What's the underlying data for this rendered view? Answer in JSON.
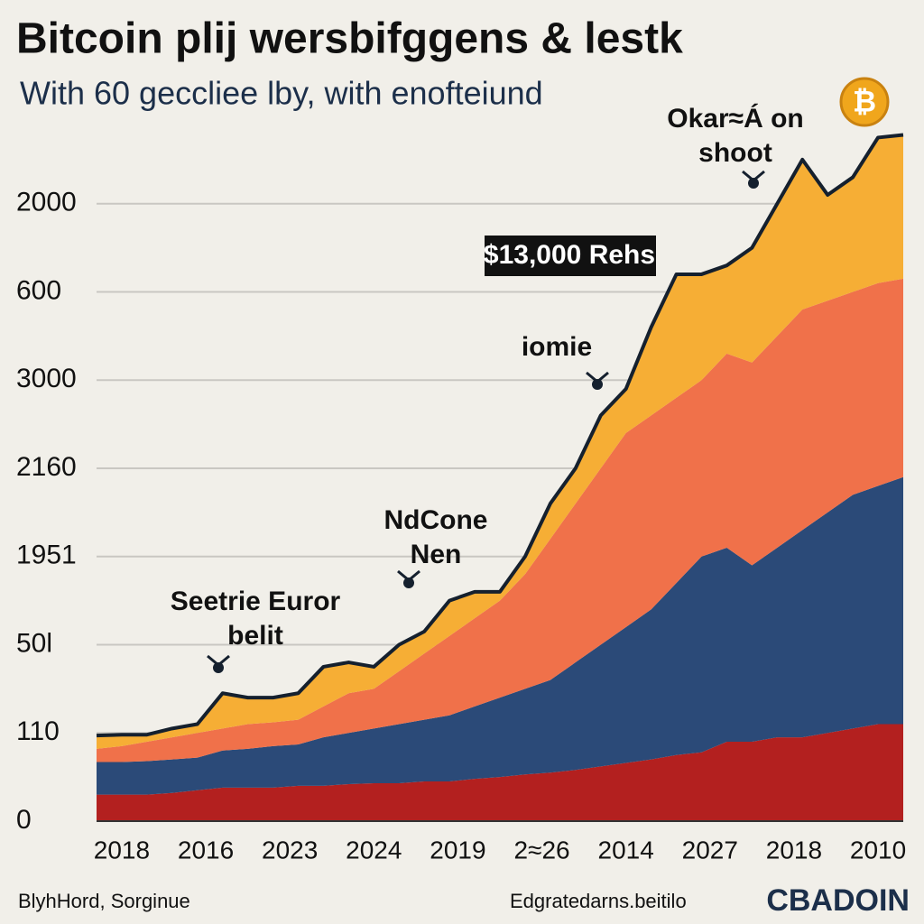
{
  "chart_data": {
    "type": "stacked_area",
    "title": "Bitcoin plij wersbifggens & lestk",
    "subtitle": "With 60 geccliee lby, with enofteiund",
    "logo_symbol": "₿",
    "x": [
      -0.3,
      0,
      0.3,
      0.6,
      0.9,
      1.2,
      1.5,
      1.8,
      2.1,
      2.4,
      2.7,
      3.0,
      3.3,
      3.6,
      3.9,
      4.2,
      4.5,
      4.8,
      5.1,
      5.4,
      5.7,
      6.0,
      6.3,
      6.6,
      6.9,
      7.2,
      7.5,
      7.8,
      8.1,
      8.4,
      8.7,
      9.0,
      9.3
    ],
    "xlim": [
      -0.3,
      9.3
    ],
    "xticks": [
      {
        "value": 0,
        "label": "2018"
      },
      {
        "value": 1,
        "label": "2016"
      },
      {
        "value": 2,
        "label": "2023"
      },
      {
        "value": 3,
        "label": "2024"
      },
      {
        "value": 4,
        "label": "2019"
      },
      {
        "value": 5,
        "label": "2≈26"
      },
      {
        "value": 6,
        "label": "2014"
      },
      {
        "value": 7,
        "label": "2027"
      },
      {
        "value": 8,
        "label": "2018"
      },
      {
        "value": 9,
        "label": "2010"
      }
    ],
    "ylim": [
      0,
      8
    ],
    "yticks": [
      0,
      {
        "value": 1,
        "label": "110"
      },
      {
        "value": 2,
        "label": "50l"
      },
      {
        "value": 3,
        "label": "1951"
      },
      {
        "value": 4,
        "label": "2160"
      },
      {
        "value": 5,
        "label": "3000"
      },
      {
        "value": 6,
        "label": "600"
      },
      {
        "value": 7,
        "label": "2000"
      }
    ],
    "grid": true,
    "series": [
      {
        "color": "#b3201f",
        "values": [
          0.3,
          0.3,
          0.3,
          0.32,
          0.35,
          0.38,
          0.38,
          0.38,
          0.4,
          0.4,
          0.42,
          0.43,
          0.43,
          0.45,
          0.45,
          0.48,
          0.5,
          0.53,
          0.55,
          0.58,
          0.62,
          0.66,
          0.7,
          0.75,
          0.78,
          0.9,
          0.9,
          0.95,
          0.95,
          1.0,
          1.05,
          1.1,
          1.1
        ]
      },
      {
        "color": "#2b4a78",
        "values": [
          0.37,
          0.37,
          0.38,
          0.38,
          0.37,
          0.42,
          0.44,
          0.47,
          0.47,
          0.55,
          0.58,
          0.62,
          0.67,
          0.7,
          0.75,
          0.82,
          0.9,
          0.97,
          1.05,
          1.22,
          1.38,
          1.54,
          1.7,
          1.95,
          2.22,
          2.2,
          2.0,
          2.15,
          2.35,
          2.5,
          2.65,
          2.7,
          2.8
        ]
      },
      {
        "color": "#f0714a",
        "values": [
          0.15,
          0.18,
          0.22,
          0.25,
          0.28,
          0.25,
          0.28,
          0.27,
          0.28,
          0.35,
          0.45,
          0.45,
          0.6,
          0.75,
          0.9,
          1.0,
          1.1,
          1.3,
          1.6,
          1.8,
          2.0,
          2.2,
          2.2,
          2.1,
          2.0,
          2.2,
          2.3,
          2.4,
          2.5,
          2.4,
          2.3,
          2.3,
          2.25
        ]
      },
      {
        "color": "#f6ae35",
        "values": [
          0.15,
          0.13,
          0.08,
          0.1,
          0.1,
          0.4,
          0.3,
          0.28,
          0.3,
          0.45,
          0.35,
          0.25,
          0.3,
          0.25,
          0.4,
          0.3,
          0.1,
          0.2,
          0.4,
          0.4,
          0.6,
          0.5,
          1.0,
          1.4,
          1.2,
          1.0,
          1.3,
          1.5,
          1.7,
          1.2,
          1.3,
          1.65,
          1.63
        ]
      }
    ],
    "outline_color": "#15202e",
    "annotations": [
      {
        "lines": [
          "Okar≈Á on",
          "shoot"
        ]
      },
      {
        "lines": [
          "$13,000 Rehs"
        ]
      },
      {
        "lines": [
          "iomie"
        ]
      },
      {
        "lines": [
          "NdCone",
          "Nen"
        ]
      },
      {
        "lines": [
          "Seetrie Euror",
          "belit"
        ]
      }
    ],
    "footer_left": "BlyhHord, Sorginue",
    "footer_center": "Edgratedarns.beitilo",
    "footer_brand": "CBADOIN"
  }
}
